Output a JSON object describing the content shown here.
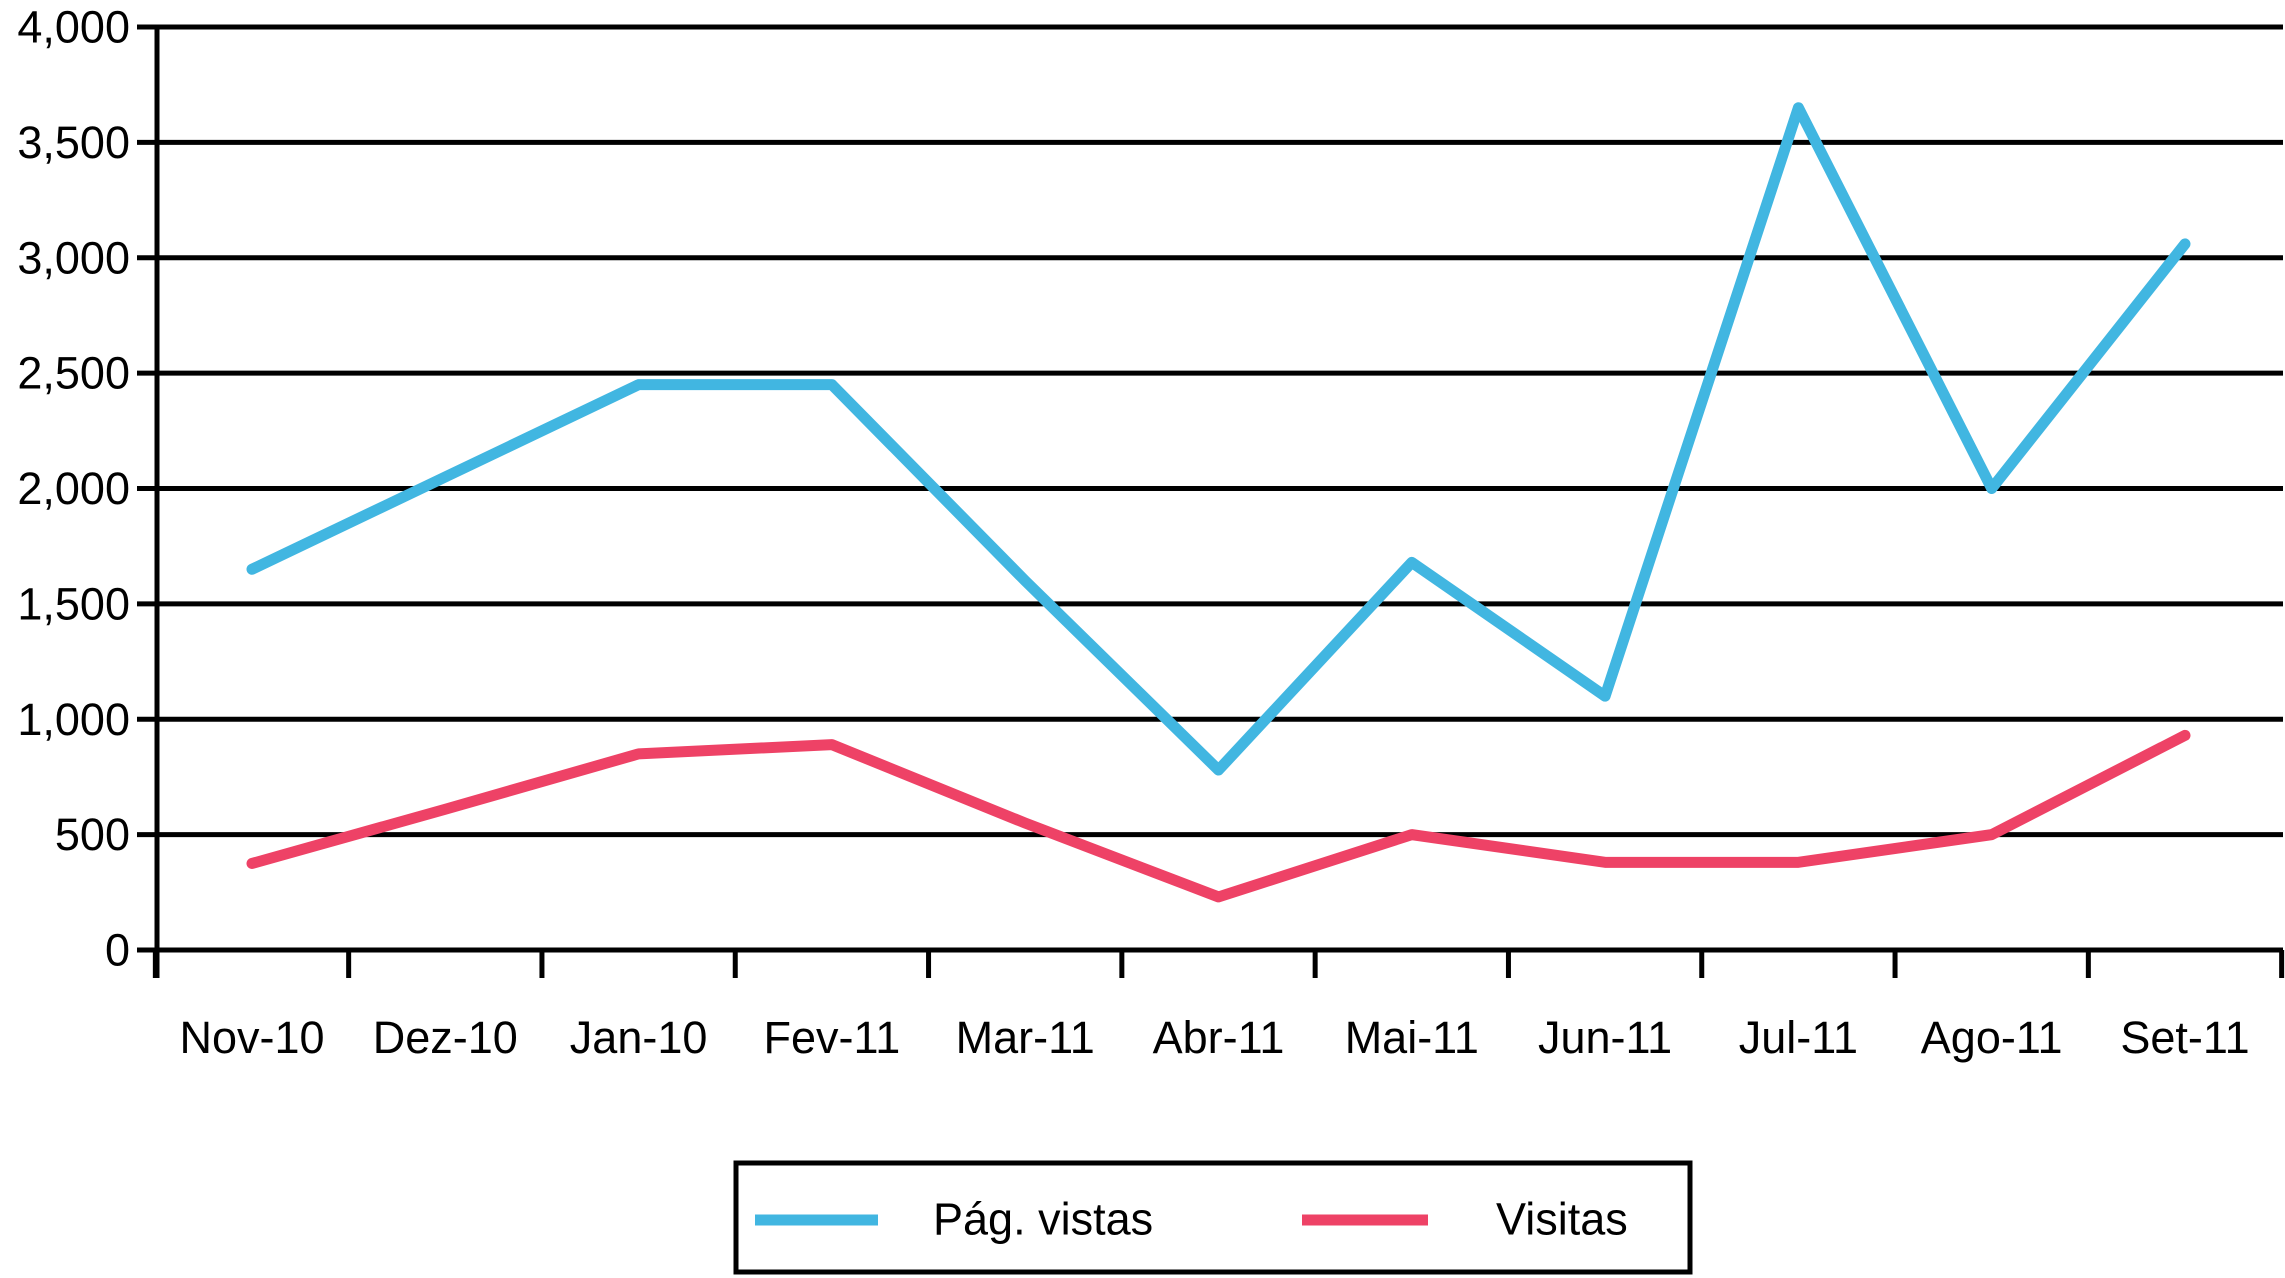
{
  "chart_data": {
    "type": "line",
    "title": "",
    "xlabel": "",
    "ylabel": "",
    "categories": [
      "Nov-10",
      "Dez-10",
      "Jan-10",
      "Fev-11",
      "Mar-11",
      "Abr-11",
      "Mai-11",
      "Jun-11",
      "Jul-11",
      "Ago-11",
      "Set-11"
    ],
    "series": [
      {
        "name": "Pág. vistas",
        "color": "#41B6E1",
        "values": [
          1650,
          2050,
          2450,
          2450,
          1600,
          780,
          1680,
          1100,
          3650,
          2000,
          3060
        ]
      },
      {
        "name": "Visitas",
        "color": "#EE4266",
        "values": [
          375,
          610,
          850,
          890,
          550,
          230,
          500,
          380,
          380,
          500,
          930
        ]
      }
    ],
    "ylim": [
      0,
      4000
    ],
    "ytick_step": 500,
    "ytick_labels": [
      "0",
      "500",
      "1,000",
      "1,500",
      "2,000",
      "2,500",
      "3,000",
      "3,500",
      "4,000"
    ],
    "grid": true,
    "grid_color": "#000000",
    "axis_color": "#000000",
    "background_color": "#FFFFFF",
    "legend_position": "bottom",
    "legend_border_color": "#000000"
  }
}
